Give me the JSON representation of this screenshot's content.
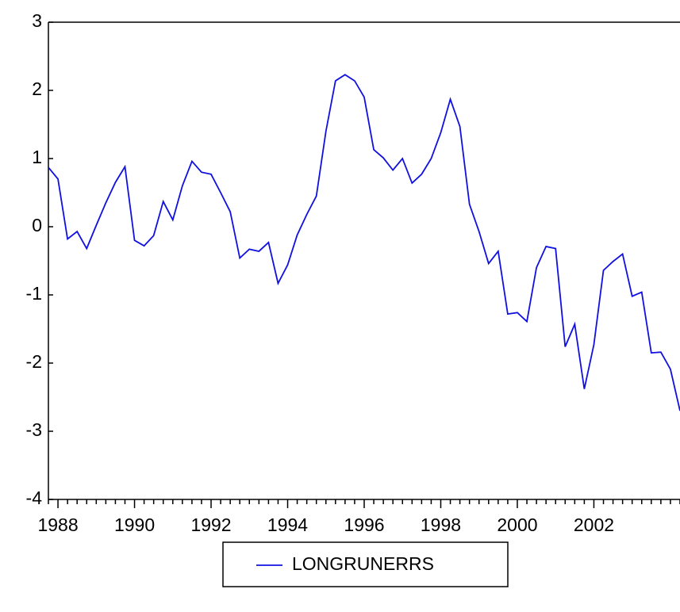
{
  "chart_data": {
    "type": "line",
    "categories": [
      null,
      "1988",
      null,
      null,
      null,
      null,
      null,
      null,
      null,
      "1990",
      null,
      null,
      null,
      null,
      null,
      null,
      null,
      "1992",
      null,
      null,
      null,
      null,
      null,
      null,
      null,
      "1994",
      null,
      null,
      null,
      null,
      null,
      null,
      null,
      "1996",
      null,
      null,
      null,
      null,
      null,
      null,
      null,
      "1998",
      null,
      null,
      null,
      null,
      null,
      null,
      null,
      "2000",
      null,
      null,
      null,
      null,
      null,
      null,
      null,
      "2002",
      null,
      null,
      null,
      null,
      null,
      null,
      null,
      null,
      null
    ],
    "series": [
      {
        "name": "LONGRUNERRS",
        "color": "#1010e0",
        "values": [
          0.87,
          0.7,
          -0.18,
          -0.07,
          -0.32,
          0.02,
          0.35,
          0.65,
          0.88,
          -0.2,
          -0.28,
          -0.13,
          0.37,
          0.1,
          0.6,
          0.96,
          0.8,
          0.77,
          0.5,
          0.22,
          -0.46,
          -0.33,
          -0.36,
          -0.23,
          -0.83,
          -0.56,
          -0.12,
          0.18,
          0.45,
          1.4,
          2.14,
          2.23,
          2.14,
          1.9,
          1.13,
          1.01,
          0.83,
          1.0,
          0.64,
          0.77,
          1.0,
          1.38,
          1.87,
          1.47,
          0.33,
          -0.07,
          -0.54,
          -0.36,
          -1.28,
          -1.26,
          -1.39,
          -0.6,
          -0.29,
          -0.32,
          -1.76,
          -1.43,
          -2.38,
          -1.73,
          -0.64,
          -0.51,
          -0.4,
          -1.02,
          -0.96,
          -1.85,
          -1.84,
          -2.09,
          -2.7
        ]
      }
    ],
    "ylim": [
      -4,
      3
    ],
    "yticks": [
      -4,
      -3,
      -2,
      -1,
      0,
      1,
      2,
      3
    ],
    "legend": "bottom"
  }
}
